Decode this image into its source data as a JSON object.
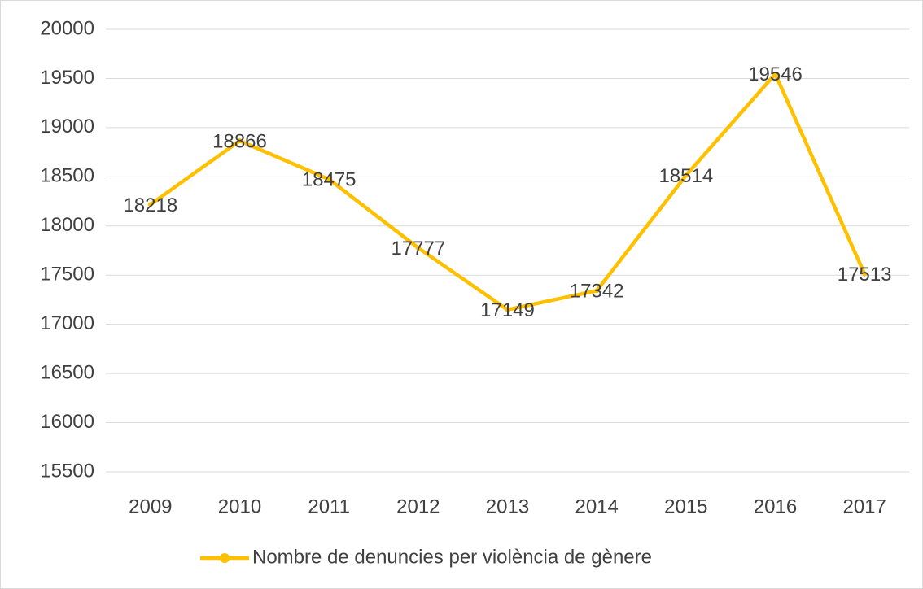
{
  "chart_data": {
    "type": "line",
    "categories": [
      "2009",
      "2010",
      "2011",
      "2012",
      "2013",
      "2014",
      "2015",
      "2016",
      "2017"
    ],
    "series": [
      {
        "name": "Nombre de denuncies per violència de gènere",
        "color": "#FFC000",
        "values": [
          18218,
          18866,
          18475,
          17777,
          17149,
          17342,
          18514,
          19546,
          17513
        ]
      }
    ],
    "ylim": [
      15500,
      20000
    ],
    "yticks": [
      15500,
      16000,
      16500,
      17000,
      17500,
      18000,
      18500,
      19000,
      19500,
      20000
    ],
    "grid": true,
    "legend": "bottom",
    "data_labels": true
  }
}
